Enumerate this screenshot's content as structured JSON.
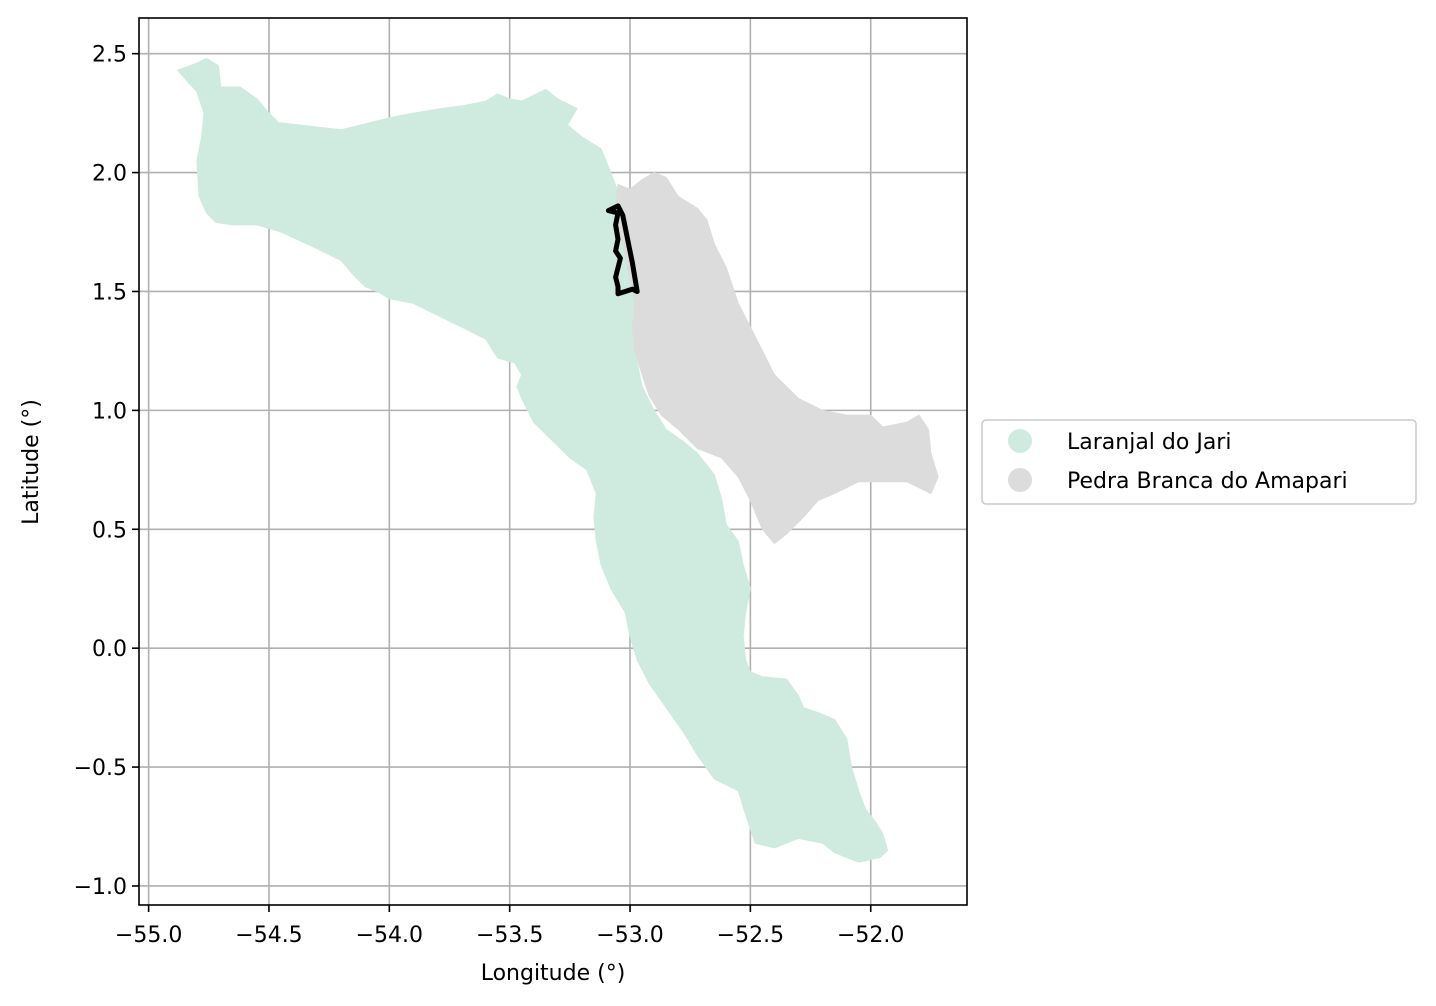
{
  "chart_data": {
    "type": "map",
    "xlabel": "Longitude (°)",
    "ylabel": "Latitude (°)",
    "xlim": [
      -55.04,
      -51.6
    ],
    "ylim": [
      -1.08,
      2.65
    ],
    "grid": true,
    "xticks": [
      {
        "value": -55.0,
        "label": "−55.0"
      },
      {
        "value": -54.5,
        "label": "−54.5"
      },
      {
        "value": -54.0,
        "label": "−54.0"
      },
      {
        "value": -53.5,
        "label": "−53.5"
      },
      {
        "value": -53.0,
        "label": "−53.0"
      },
      {
        "value": -52.5,
        "label": "−52.5"
      },
      {
        "value": -52.0,
        "label": "−52.0"
      }
    ],
    "yticks": [
      {
        "value": 2.5,
        "label": "2.5"
      },
      {
        "value": 2.0,
        "label": "2.0"
      },
      {
        "value": 1.5,
        "label": "1.5"
      },
      {
        "value": 1.0,
        "label": "1.0"
      },
      {
        "value": 0.5,
        "label": "0.5"
      },
      {
        "value": 0.0,
        "label": "0.0"
      },
      {
        "value": -0.5,
        "label": "−0.5"
      },
      {
        "value": -1.0,
        "label": "−1.0"
      }
    ],
    "legend_position": "center-right-outside",
    "regions": [
      {
        "name": "Laranjal do Jari",
        "color": "#cfebdf",
        "polygon": [
          [
            -54.88,
            2.43
          ],
          [
            -54.8,
            2.46
          ],
          [
            -54.76,
            2.48
          ],
          [
            -54.71,
            2.45
          ],
          [
            -54.7,
            2.36
          ],
          [
            -54.62,
            2.36
          ],
          [
            -54.55,
            2.31
          ],
          [
            -54.5,
            2.25
          ],
          [
            -54.46,
            2.21
          ],
          [
            -54.2,
            2.18
          ],
          [
            -54.0,
            2.23
          ],
          [
            -53.9,
            2.25
          ],
          [
            -53.78,
            2.27
          ],
          [
            -53.7,
            2.28
          ],
          [
            -53.6,
            2.3
          ],
          [
            -53.55,
            2.33
          ],
          [
            -53.5,
            2.31
          ],
          [
            -53.45,
            2.3
          ],
          [
            -53.35,
            2.35
          ],
          [
            -53.3,
            2.31
          ],
          [
            -53.22,
            2.27
          ],
          [
            -53.26,
            2.2
          ],
          [
            -53.2,
            2.15
          ],
          [
            -53.12,
            2.1
          ],
          [
            -53.08,
            2.0
          ],
          [
            -53.05,
            1.92
          ],
          [
            -53.02,
            1.82
          ],
          [
            -53.0,
            1.72
          ],
          [
            -52.98,
            1.62
          ],
          [
            -52.95,
            1.5
          ],
          [
            -52.97,
            1.4
          ],
          [
            -52.99,
            1.3
          ],
          [
            -52.97,
            1.2
          ],
          [
            -52.95,
            1.1
          ],
          [
            -52.9,
            1.0
          ],
          [
            -52.85,
            0.92
          ],
          [
            -52.78,
            0.87
          ],
          [
            -52.72,
            0.82
          ],
          [
            -52.65,
            0.73
          ],
          [
            -52.62,
            0.63
          ],
          [
            -52.6,
            0.52
          ],
          [
            -52.55,
            0.45
          ],
          [
            -52.53,
            0.35
          ],
          [
            -52.5,
            0.25
          ],
          [
            -52.52,
            0.15
          ],
          [
            -52.53,
            0.05
          ],
          [
            -52.52,
            -0.05
          ],
          [
            -52.5,
            -0.1
          ],
          [
            -52.45,
            -0.12
          ],
          [
            -52.35,
            -0.13
          ],
          [
            -52.3,
            -0.2
          ],
          [
            -52.28,
            -0.25
          ],
          [
            -52.22,
            -0.27
          ],
          [
            -52.15,
            -0.3
          ],
          [
            -52.1,
            -0.38
          ],
          [
            -52.08,
            -0.5
          ],
          [
            -52.05,
            -0.6
          ],
          [
            -52.02,
            -0.68
          ],
          [
            -51.98,
            -0.73
          ],
          [
            -51.95,
            -0.78
          ],
          [
            -51.93,
            -0.85
          ],
          [
            -51.96,
            -0.88
          ],
          [
            -52.05,
            -0.9
          ],
          [
            -52.15,
            -0.86
          ],
          [
            -52.2,
            -0.82
          ],
          [
            -52.3,
            -0.8
          ],
          [
            -52.4,
            -0.84
          ],
          [
            -52.48,
            -0.82
          ],
          [
            -52.52,
            -0.7
          ],
          [
            -52.55,
            -0.6
          ],
          [
            -52.65,
            -0.55
          ],
          [
            -52.72,
            -0.45
          ],
          [
            -52.78,
            -0.35
          ],
          [
            -52.85,
            -0.25
          ],
          [
            -52.92,
            -0.15
          ],
          [
            -52.97,
            -0.05
          ],
          [
            -53.0,
            0.05
          ],
          [
            -53.02,
            0.15
          ],
          [
            -53.08,
            0.25
          ],
          [
            -53.12,
            0.35
          ],
          [
            -53.14,
            0.45
          ],
          [
            -53.15,
            0.55
          ],
          [
            -53.14,
            0.65
          ],
          [
            -53.18,
            0.75
          ],
          [
            -53.25,
            0.8
          ],
          [
            -53.32,
            0.87
          ],
          [
            -53.4,
            0.95
          ],
          [
            -53.45,
            1.05
          ],
          [
            -53.47,
            1.1
          ],
          [
            -53.45,
            1.15
          ],
          [
            -53.48,
            1.2
          ],
          [
            -53.55,
            1.22
          ],
          [
            -53.6,
            1.3
          ],
          [
            -53.7,
            1.35
          ],
          [
            -53.8,
            1.4
          ],
          [
            -53.9,
            1.45
          ],
          [
            -54.0,
            1.47
          ],
          [
            -54.05,
            1.5
          ],
          [
            -54.1,
            1.52
          ],
          [
            -54.15,
            1.57
          ],
          [
            -54.2,
            1.63
          ],
          [
            -54.3,
            1.68
          ],
          [
            -54.45,
            1.75
          ],
          [
            -54.55,
            1.78
          ],
          [
            -54.65,
            1.78
          ],
          [
            -54.72,
            1.79
          ],
          [
            -54.76,
            1.83
          ],
          [
            -54.79,
            1.9
          ],
          [
            -54.8,
            2.05
          ],
          [
            -54.78,
            2.15
          ],
          [
            -54.77,
            2.25
          ],
          [
            -54.8,
            2.34
          ]
        ]
      },
      {
        "name": "Pedra Branca do Amapari",
        "color": "#dcdcdc",
        "polygon": [
          [
            -53.05,
            1.95
          ],
          [
            -53.0,
            1.93
          ],
          [
            -52.95,
            1.97
          ],
          [
            -52.9,
            2.0
          ],
          [
            -52.85,
            1.98
          ],
          [
            -52.8,
            1.9
          ],
          [
            -52.72,
            1.85
          ],
          [
            -52.68,
            1.8
          ],
          [
            -52.65,
            1.7
          ],
          [
            -52.6,
            1.6
          ],
          [
            -52.55,
            1.45
          ],
          [
            -52.5,
            1.35
          ],
          [
            -52.45,
            1.25
          ],
          [
            -52.4,
            1.15
          ],
          [
            -52.3,
            1.05
          ],
          [
            -52.2,
            1.0
          ],
          [
            -52.1,
            0.98
          ],
          [
            -52.0,
            0.98
          ],
          [
            -51.95,
            0.93
          ],
          [
            -51.85,
            0.95
          ],
          [
            -51.8,
            0.98
          ],
          [
            -51.76,
            0.92
          ],
          [
            -51.75,
            0.82
          ],
          [
            -51.72,
            0.72
          ],
          [
            -51.75,
            0.65
          ],
          [
            -51.85,
            0.7
          ],
          [
            -51.95,
            0.7
          ],
          [
            -52.05,
            0.7
          ],
          [
            -52.15,
            0.65
          ],
          [
            -52.22,
            0.62
          ],
          [
            -52.28,
            0.55
          ],
          [
            -52.35,
            0.48
          ],
          [
            -52.4,
            0.44
          ],
          [
            -52.45,
            0.5
          ],
          [
            -52.5,
            0.62
          ],
          [
            -52.55,
            0.72
          ],
          [
            -52.62,
            0.8
          ],
          [
            -52.72,
            0.84
          ],
          [
            -52.8,
            0.92
          ],
          [
            -52.87,
            0.98
          ],
          [
            -52.92,
            1.06
          ],
          [
            -52.95,
            1.15
          ],
          [
            -52.98,
            1.25
          ],
          [
            -52.99,
            1.35
          ],
          [
            -52.98,
            1.45
          ],
          [
            -53.0,
            1.55
          ],
          [
            -53.02,
            1.65
          ],
          [
            -53.04,
            1.75
          ],
          [
            -53.06,
            1.85
          ]
        ]
      }
    ],
    "track": {
      "color": "#000000",
      "points": [
        [
          -53.09,
          1.84
        ],
        [
          -53.07,
          1.85
        ],
        [
          -53.05,
          1.86
        ],
        [
          -53.03,
          1.82
        ],
        [
          -53.01,
          1.72
        ],
        [
          -52.99,
          1.62
        ],
        [
          -52.97,
          1.5
        ],
        [
          -52.99,
          1.51
        ],
        [
          -53.02,
          1.5
        ],
        [
          -53.05,
          1.49
        ],
        [
          -53.05,
          1.52
        ],
        [
          -53.06,
          1.56
        ],
        [
          -53.05,
          1.6
        ],
        [
          -53.04,
          1.64
        ],
        [
          -53.06,
          1.67
        ],
        [
          -53.05,
          1.72
        ],
        [
          -53.06,
          1.78
        ],
        [
          -53.05,
          1.83
        ]
      ]
    }
  }
}
